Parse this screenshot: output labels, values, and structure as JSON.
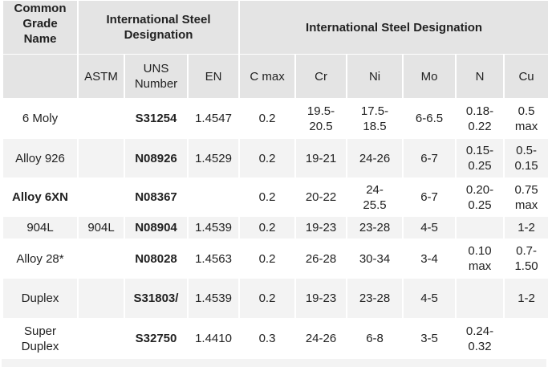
{
  "table": {
    "header": [
      [
        "Common\nGrade\nName",
        "International Steel\nDesignation",
        "International Steel Designation"
      ],
      [
        null,
        "ASTM",
        "UNS\nNumber",
        "EN",
        "C max",
        "Cr",
        "Ni",
        "Mo",
        "N",
        "Cu"
      ]
    ],
    "rows": [
      [
        "6 Moly",
        null,
        "S31254",
        "1.4547",
        "0.2",
        "19.5-\n20.5",
        "17.5-\n18.5",
        "6-6.5",
        "0.18-\n0.22",
        "0.5\nmax"
      ],
      [
        "Alloy 926",
        null,
        "N08926",
        "1.4529",
        "0.2",
        "19-21",
        "24-26",
        "6-7",
        "0.15-\n0.25",
        "0.5-\n0.15"
      ],
      [
        "Alloy 6XN",
        null,
        "N08367",
        null,
        "0.2",
        "20-22",
        "24-\n25.5",
        "6-7",
        "0.20-\n0.25",
        "0.75\nmax"
      ],
      [
        "904L",
        "904L",
        "N08904",
        "1.4539",
        "0.2",
        "19-23",
        "23-28",
        "4-5",
        null,
        "1-2"
      ],
      [
        "Alloy 28*",
        null,
        "N08028",
        "1.4563",
        "0.2",
        "26-28",
        "30-34",
        "3-4",
        "0.10\nmax",
        "0.7-\n1.50"
      ],
      [
        "Duplex",
        null,
        "S31803/",
        "1.4539",
        "0.2",
        "19-23",
        "23-28",
        "4-5",
        null,
        "1-2"
      ],
      [
        "Super\nDuplex",
        null,
        "S32750",
        "1.4410",
        "0.3",
        "24-26",
        "6-8",
        "3-5",
        "0.24-\n0.32",
        null
      ]
    ]
  }
}
